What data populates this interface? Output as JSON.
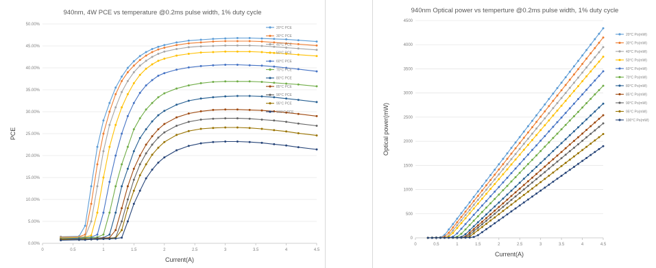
{
  "chart_data": [
    {
      "type": "line",
      "title": "940nm, 4W PCE vs temperature @0.2ms pulse width, 1% duty cycle",
      "xlabel": "Current(A)",
      "ylabel": "PCE",
      "xlim": [
        0,
        4.5
      ],
      "ylim": [
        0,
        0.5
      ],
      "x_ticks": [
        "0",
        "0.5",
        "1",
        "1.5",
        "2",
        "2.5",
        "3",
        "3.5",
        "4",
        "4.5"
      ],
      "y_ticks": [
        "0.00%",
        "5.00%",
        "10.00%",
        "15.00%",
        "20.00%",
        "25.00%",
        "30.00%",
        "35.00%",
        "40.00%",
        "45.00%",
        "50.00%"
      ],
      "grid": "horizontal",
      "legend_position": "right",
      "x": [
        0.3,
        0.6,
        0.7,
        0.8,
        0.9,
        1.0,
        1.1,
        1.2,
        1.3,
        1.4,
        1.5,
        1.6,
        1.7,
        1.8,
        1.9,
        2.0,
        2.2,
        2.4,
        2.6,
        2.8,
        3.0,
        3.2,
        3.4,
        3.6,
        3.8,
        4.0,
        4.2,
        4.5
      ],
      "series": [
        {
          "name": "20°C PCE",
          "color": "#5b9bd5",
          "values": [
            0.015,
            0.016,
            0.04,
            0.13,
            0.22,
            0.28,
            0.32,
            0.355,
            0.38,
            0.4,
            0.415,
            0.427,
            0.436,
            0.443,
            0.448,
            0.452,
            0.458,
            0.462,
            0.464,
            0.466,
            0.467,
            0.468,
            0.468,
            0.467,
            0.466,
            0.465,
            0.463,
            0.46
          ]
        },
        {
          "name": "30°C PCE",
          "color": "#ed7d31",
          "values": [
            0.014,
            0.015,
            0.02,
            0.09,
            0.18,
            0.25,
            0.3,
            0.34,
            0.37,
            0.39,
            0.405,
            0.418,
            0.428,
            0.436,
            0.442,
            0.446,
            0.452,
            0.456,
            0.458,
            0.46,
            0.461,
            0.461,
            0.461,
            0.46,
            0.458,
            0.456,
            0.454,
            0.451
          ]
        },
        {
          "name": "40°C PCE",
          "color": "#a5a5a5",
          "values": [
            0.013,
            0.014,
            0.015,
            0.05,
            0.13,
            0.21,
            0.27,
            0.31,
            0.345,
            0.37,
            0.39,
            0.405,
            0.416,
            0.425,
            0.432,
            0.437,
            0.443,
            0.447,
            0.449,
            0.45,
            0.451,
            0.451,
            0.451,
            0.45,
            0.448,
            0.446,
            0.444,
            0.441
          ]
        },
        {
          "name": "50°C PCE",
          "color": "#ffc000",
          "values": [
            0.012,
            0.013,
            0.014,
            0.018,
            0.07,
            0.15,
            0.22,
            0.27,
            0.31,
            0.34,
            0.365,
            0.384,
            0.398,
            0.408,
            0.416,
            0.421,
            0.428,
            0.432,
            0.435,
            0.436,
            0.437,
            0.437,
            0.437,
            0.436,
            0.434,
            0.432,
            0.43,
            0.427
          ]
        },
        {
          "name": "60°C PCE",
          "color": "#4472c4",
          "values": [
            0.011,
            0.012,
            0.013,
            0.014,
            0.02,
            0.07,
            0.14,
            0.2,
            0.25,
            0.29,
            0.32,
            0.343,
            0.36,
            0.372,
            0.382,
            0.388,
            0.396,
            0.401,
            0.404,
            0.406,
            0.407,
            0.407,
            0.406,
            0.405,
            0.403,
            0.4,
            0.397,
            0.392
          ]
        },
        {
          "name": "70°C PCE",
          "color": "#70ad47",
          "values": [
            0.01,
            0.011,
            0.012,
            0.013,
            0.014,
            0.02,
            0.07,
            0.13,
            0.18,
            0.22,
            0.26,
            0.285,
            0.305,
            0.32,
            0.333,
            0.342,
            0.353,
            0.36,
            0.365,
            0.368,
            0.369,
            0.369,
            0.369,
            0.368,
            0.366,
            0.364,
            0.362,
            0.358
          ]
        },
        {
          "name": "80°C PCE",
          "color": "#255e91",
          "values": [
            0.009,
            0.01,
            0.01,
            0.011,
            0.012,
            0.013,
            0.02,
            0.07,
            0.13,
            0.17,
            0.21,
            0.24,
            0.26,
            0.278,
            0.292,
            0.302,
            0.316,
            0.325,
            0.33,
            0.333,
            0.335,
            0.336,
            0.336,
            0.335,
            0.333,
            0.33,
            0.327,
            0.322
          ]
        },
        {
          "name": "85°C PCE",
          "color": "#9e480e",
          "values": [
            0.009,
            0.009,
            0.01,
            0.01,
            0.011,
            0.012,
            0.013,
            0.03,
            0.08,
            0.13,
            0.17,
            0.2,
            0.225,
            0.244,
            0.26,
            0.272,
            0.287,
            0.296,
            0.301,
            0.304,
            0.305,
            0.305,
            0.304,
            0.303,
            0.301,
            0.298,
            0.295,
            0.29
          ]
        },
        {
          "name": "90°C PCE",
          "color": "#636363",
          "values": [
            0.008,
            0.009,
            0.009,
            0.01,
            0.01,
            0.011,
            0.012,
            0.013,
            0.05,
            0.1,
            0.145,
            0.18,
            0.205,
            0.225,
            0.241,
            0.253,
            0.268,
            0.277,
            0.282,
            0.284,
            0.285,
            0.285,
            0.284,
            0.282,
            0.28,
            0.277,
            0.273,
            0.268
          ]
        },
        {
          "name": "95°C PCE",
          "color": "#997300",
          "values": [
            0.008,
            0.008,
            0.009,
            0.009,
            0.01,
            0.01,
            0.011,
            0.012,
            0.03,
            0.08,
            0.12,
            0.155,
            0.18,
            0.202,
            0.218,
            0.231,
            0.247,
            0.256,
            0.261,
            0.263,
            0.264,
            0.264,
            0.263,
            0.261,
            0.258,
            0.255,
            0.251,
            0.246
          ]
        },
        {
          "name": "100°C PCE",
          "color": "#264478",
          "values": [
            0.007,
            0.008,
            0.008,
            0.009,
            0.009,
            0.01,
            0.01,
            0.011,
            0.013,
            0.05,
            0.09,
            0.12,
            0.148,
            0.168,
            0.184,
            0.196,
            0.212,
            0.222,
            0.228,
            0.231,
            0.232,
            0.232,
            0.231,
            0.229,
            0.226,
            0.223,
            0.219,
            0.214
          ]
        }
      ]
    },
    {
      "type": "line",
      "title": "940nm Optical power vs temperture @0.2ms pulse width, 1% duty cycle",
      "xlabel": "Current(A)",
      "ylabel": "Optical power(mW)",
      "xlim": [
        0,
        4.5
      ],
      "ylim": [
        0,
        4500
      ],
      "x_ticks": [
        "0",
        "0.5",
        "1",
        "1.5",
        "2",
        "2.5",
        "3",
        "3.5",
        "4",
        "4.5"
      ],
      "y_ticks": [
        "0",
        "500",
        "1000",
        "1500",
        "2000",
        "2500",
        "3000",
        "3500",
        "4000",
        "4500"
      ],
      "grid": "horizontal",
      "legend_position": "right",
      "series": [
        {
          "name": "20°C Po(mW)",
          "color": "#5b9bd5",
          "points": [
            [
              0.3,
              0
            ],
            [
              0.6,
              10
            ],
            [
              0.7,
              60
            ],
            [
              4.5,
              4340
            ]
          ]
        },
        {
          "name": "30°C Po(mW)",
          "color": "#ed7d31",
          "points": [
            [
              0.3,
              0
            ],
            [
              0.65,
              5
            ],
            [
              0.75,
              50
            ],
            [
              4.5,
              4150
            ]
          ]
        },
        {
          "name": "40°C Po(mW)",
          "color": "#a5a5a5",
          "points": [
            [
              0.3,
              0
            ],
            [
              0.7,
              5
            ],
            [
              0.8,
              50
            ],
            [
              4.5,
              3950
            ]
          ]
        },
        {
          "name": "50°C Po(mW)",
          "color": "#ffc000",
          "points": [
            [
              0.3,
              0
            ],
            [
              0.75,
              5
            ],
            [
              0.85,
              50
            ],
            [
              4.5,
              3750
            ]
          ]
        },
        {
          "name": "60°C Po(mW)",
          "color": "#4472c4",
          "points": [
            [
              0.3,
              0
            ],
            [
              0.85,
              5
            ],
            [
              0.95,
              45
            ],
            [
              4.5,
              3450
            ]
          ]
        },
        {
          "name": "70°C Po(mW)",
          "color": "#70ad47",
          "points": [
            [
              0.3,
              0
            ],
            [
              0.95,
              5
            ],
            [
              1.05,
              40
            ],
            [
              4.5,
              3150
            ]
          ]
        },
        {
          "name": "80°C Po(mW)",
          "color": "#255e91",
          "points": [
            [
              0.3,
              0
            ],
            [
              1.05,
              5
            ],
            [
              1.15,
              35
            ],
            [
              4.5,
              2780
            ]
          ]
        },
        {
          "name": "85°C Po(mW)",
          "color": "#9e480e",
          "points": [
            [
              0.3,
              0
            ],
            [
              1.1,
              5
            ],
            [
              1.2,
              30
            ],
            [
              4.5,
              2540
            ]
          ]
        },
        {
          "name": "90°C Po(mW)",
          "color": "#636363",
          "points": [
            [
              0.3,
              0
            ],
            [
              1.15,
              5
            ],
            [
              1.25,
              30
            ],
            [
              4.5,
              2370
            ]
          ]
        },
        {
          "name": "95°C Po(mW)",
          "color": "#997300",
          "points": [
            [
              0.3,
              0
            ],
            [
              1.2,
              5
            ],
            [
              1.3,
              25
            ],
            [
              4.5,
              2150
            ]
          ]
        },
        {
          "name": "100°C Po(mW)",
          "color": "#264478",
          "points": [
            [
              0.3,
              0
            ],
            [
              1.3,
              5
            ],
            [
              1.45,
              25
            ],
            [
              4.5,
              1900
            ]
          ]
        }
      ]
    }
  ]
}
